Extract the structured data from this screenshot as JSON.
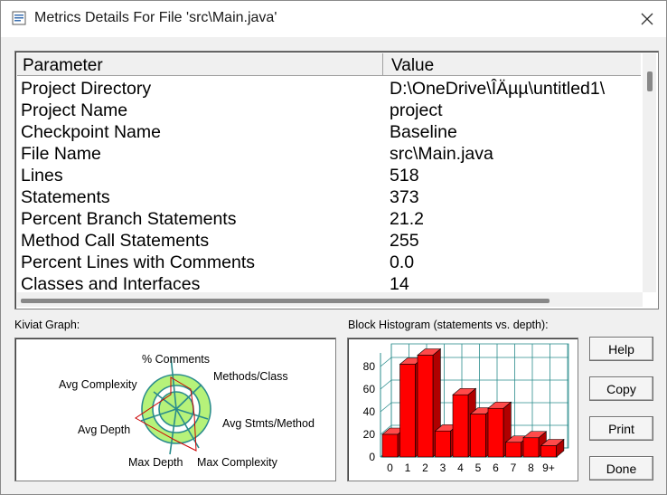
{
  "window": {
    "title": "Metrics Details For File 'src\\Main.java'"
  },
  "table": {
    "col_param": "Parameter",
    "col_value": "Value",
    "rows": [
      {
        "param": "Project Directory",
        "value": "D:\\OneDrive\\ÎÄµµ\\untitled1\\"
      },
      {
        "param": "Project Name",
        "value": "project"
      },
      {
        "param": "Checkpoint Name",
        "value": "Baseline"
      },
      {
        "param": "File Name",
        "value": "src\\Main.java"
      },
      {
        "param": "Lines",
        "value": "518"
      },
      {
        "param": "Statements",
        "value": "373"
      },
      {
        "param": "Percent Branch Statements",
        "value": "21.2"
      },
      {
        "param": "Method Call Statements",
        "value": "255"
      },
      {
        "param": "Percent Lines with Comments",
        "value": "0.0"
      },
      {
        "param": "Classes and Interfaces",
        "value": "14"
      }
    ]
  },
  "kiviat": {
    "label": "Kiviat Graph:",
    "axes": [
      "% Comments",
      "Methods/Class",
      "Avg Stmts/Method",
      "Max Complexity",
      "Max Depth",
      "Avg Depth",
      "Avg Complexity"
    ]
  },
  "histogram": {
    "label": "Block Histogram (statements vs. depth):",
    "y_ticks": [
      "0",
      "20",
      "40",
      "60",
      "80"
    ]
  },
  "buttons": {
    "help": "Help",
    "copy": "Copy",
    "print": "Print",
    "done": "Done"
  },
  "colors": {
    "bar_red": "#ff0000",
    "ring_green": "#b6f27a",
    "grid_teal": "#2a8c8c"
  },
  "chart_data": {
    "type": "bar",
    "categories": [
      "0",
      "1",
      "2",
      "3",
      "4",
      "5",
      "6",
      "7",
      "8",
      "9+"
    ],
    "values": [
      20,
      82,
      90,
      23,
      55,
      38,
      43,
      13,
      17,
      10
    ],
    "title": "Block Histogram (statements vs. depth):",
    "xlabel": "",
    "ylabel": "",
    "ylim": [
      0,
      90
    ]
  }
}
